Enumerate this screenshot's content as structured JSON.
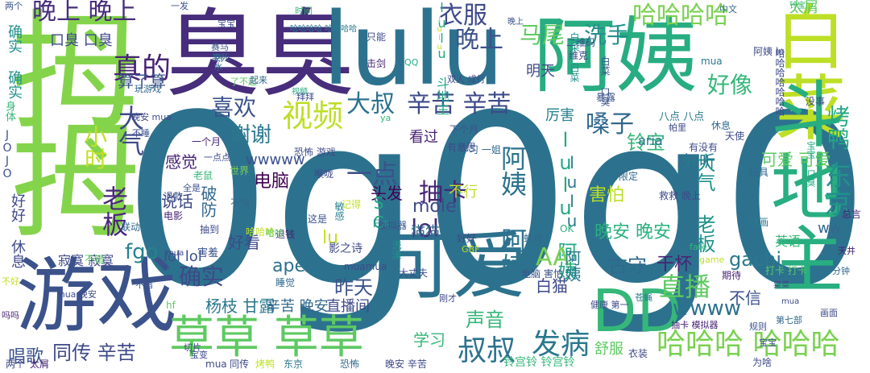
{
  "words": [
    {
      "text": "0g0g0",
      "color": "#2c728e"
    },
    {
      "text": "臭臭",
      "color": "#472d7b"
    },
    {
      "text": "lulu",
      "color": "#2c728e"
    },
    {
      "text": "阿姨",
      "color": "#27ad81"
    },
    {
      "text": "白菜",
      "color": "#bddf26"
    },
    {
      "text": "拇",
      "color": "#84d44b"
    },
    {
      "text": "拇",
      "color": "#84d44b"
    },
    {
      "text": "游戏",
      "color": "#3b528b"
    },
    {
      "text": "可爱",
      "color": "#2c728e"
    },
    {
      "text": "草草 草草",
      "color": "#5ec962"
    },
    {
      "text": "斗地主",
      "color": "#28ae80"
    },
    {
      "text": "DD",
      "color": "#35b779"
    },
    {
      "text": "晚上 晚上",
      "color": "#472d7b"
    },
    {
      "text": "衣服",
      "color": "#3e4a89"
    },
    {
      "text": "晚上",
      "color": "#3b528b"
    },
    {
      "text": "马尾",
      "color": "#5ec962"
    },
    {
      "text": "洗手",
      "color": "#21918c"
    },
    {
      "text": "哈哈哈哈",
      "color": "#7ad151"
    },
    {
      "text": "哈哈哈哈 哈哈哈哈",
      "color": "#2a788e"
    },
    {
      "text": "真的",
      "color": "#482475"
    },
    {
      "text": "喜欢",
      "color": "#3b528b"
    },
    {
      "text": "视频",
      "color": "#bddf26"
    },
    {
      "text": "大叔",
      "color": "#2c728e"
    },
    {
      "text": "辛苦 辛苦",
      "color": "#3e4a89"
    },
    {
      "text": "好像",
      "color": "#35b779"
    },
    {
      "text": "谢谢",
      "color": "#2a788e"
    },
    {
      "text": "嗓子",
      "color": "#31688e"
    },
    {
      "text": "烤鸭",
      "color": "#22a884"
    },
    {
      "text": "东京",
      "color": "#21918c"
    },
    {
      "text": "小时",
      "color": "#c2df23"
    },
    {
      "text": "老板",
      "color": "#482878"
    },
    {
      "text": "大气",
      "color": "#3e4a89"
    },
    {
      "text": "一点",
      "color": "#3b528b"
    },
    {
      "text": "lol",
      "color": "#472c7a"
    },
    {
      "text": "抽卡",
      "color": "#482475"
    },
    {
      "text": "阿姨 阿姨",
      "color": "#2c728e"
    },
    {
      "text": "铃宝",
      "color": "#35b779"
    },
    {
      "text": "lulu 阿姨",
      "color": "#22a884"
    },
    {
      "text": "fgo",
      "color": "#26828e"
    },
    {
      "text": "lol lol",
      "color": "#3b528b"
    },
    {
      "text": "确实",
      "color": "#3e4a89"
    },
    {
      "text": "wwww",
      "color": "#2c728e"
    },
    {
      "text": "直播",
      "color": "#5ec962"
    },
    {
      "text": "gachi",
      "color": "#2a788e"
    },
    {
      "text": "AA",
      "color": "#7ad151"
    },
    {
      "text": "昨天",
      "color": "#3b528b"
    },
    {
      "text": "杨枝 甘露",
      "color": "#2a788e"
    },
    {
      "text": "辛苦 晚安",
      "color": "#31688e"
    },
    {
      "text": "直播间",
      "color": "#3e4a89"
    },
    {
      "text": "声音",
      "color": "#35b779"
    },
    {
      "text": "白猫",
      "color": "#3e4a89"
    },
    {
      "text": "古守",
      "color": "#31688e"
    },
    {
      "text": "干杯",
      "color": "#482475"
    },
    {
      "text": "同传 辛苦",
      "color": "#3e4a89"
    },
    {
      "text": "叔叔",
      "color": "#2c728e"
    },
    {
      "text": "发病",
      "color": "#2a788e"
    },
    {
      "text": "哈哈哈 哈哈哈",
      "color": "#7ad151"
    },
    {
      "text": "晚安 晚安",
      "color": "#2ab07f"
    },
    {
      "text": "大气 老板",
      "color": "#21918c"
    },
    {
      "text": "可爱 可爱",
      "color": "#5ec962"
    },
    {
      "text": "害怕",
      "color": "#bddf26"
    },
    {
      "text": "电脑",
      "color": "#440154"
    },
    {
      "text": "apex",
      "color": "#2c728e"
    },
    {
      "text": "mole",
      "color": "#3e4a89"
    },
    {
      "text": "猫猫",
      "color": "#31688e"
    },
    {
      "text": "lulu 斗地主",
      "color": "#22a884"
    },
    {
      "text": "视频",
      "color": "#27ad81"
    },
    {
      "text": "学习",
      "color": "#35b779"
    },
    {
      "text": "唱歌",
      "color": "#3b528b"
    },
    {
      "text": "好好 休息",
      "color": "#3e4a89"
    },
    {
      "text": "寂寞 寂寞",
      "color": "#3e4a89"
    },
    {
      "text": "算了算",
      "color": "#3b528b"
    },
    {
      "text": "口臭 口臭",
      "color": "#3e4a89"
    },
    {
      "text": "确实 确实",
      "color": "#21918c"
    },
    {
      "text": "感觉",
      "color": "#482475"
    },
    {
      "text": "说话",
      "color": "#3e4a89"
    },
    {
      "text": "破防",
      "color": "#31688e"
    },
    {
      "text": "好看",
      "color": "#3e4a89"
    },
    {
      "text": "wwwww",
      "color": "#3b528b"
    },
    {
      "text": "头发",
      "color": "#440154"
    },
    {
      "text": "不行",
      "color": "#bddf26"
    },
    {
      "text": "看过",
      "color": "#482475"
    },
    {
      "text": "lu",
      "color": "#c2df23"
    },
    {
      "text": "SC",
      "color": "#22a884"
    },
    {
      "text": "lulu 阿姨",
      "color": "#2a788e"
    },
    {
      "text": "明天",
      "color": "#3e4a89"
    },
    {
      "text": "厉害",
      "color": "#26828e"
    },
    {
      "text": "好听",
      "color": "#2a788e"
    },
    {
      "text": "不信",
      "color": "#3b528b"
    },
    {
      "text": "ww",
      "color": "#31688e"
    },
    {
      "text": "英语",
      "color": "#35b779"
    },
    {
      "text": "太屑",
      "color": "#5ec962"
    },
    {
      "text": "aria",
      "color": "#2c728e"
    },
    {
      "text": "mua",
      "color": "#2a788e"
    },
    {
      "text": "JOJO",
      "color": "#3b528b"
    },
    {
      "text": "身体",
      "color": "#35b779"
    },
    {
      "text": "联动",
      "color": "#31688e"
    },
    {
      "text": "电影",
      "color": "#482475"
    },
    {
      "text": "退款",
      "color": "#3b528b"
    },
    {
      "text": "不错",
      "color": "#5ec962"
    },
    {
      "text": "影之诗",
      "color": "#3e4a89"
    },
    {
      "text": "大丈夫",
      "color": "#3e4a89"
    },
    {
      "text": "muamua",
      "color": "#3e4a89"
    },
    {
      "text": "害羞",
      "color": "#3b528b"
    },
    {
      "text": "老鼠",
      "color": "#35b779"
    },
    {
      "text": "抽到",
      "color": "#3e4a89"
    },
    {
      "text": "退钱",
      "color": "#482475"
    },
    {
      "text": "哈哈哈",
      "color": "#bddf26"
    },
    {
      "text": "敏感",
      "color": "#26828e"
    },
    {
      "text": "模拟器",
      "color": "#3b528b"
    },
    {
      "text": "一个月",
      "color": "#482475"
    },
    {
      "text": "下个月",
      "color": "#3b528b"
    },
    {
      "text": "恐怖 游戏",
      "color": "#3e4a89"
    },
    {
      "text": "学习 一姐",
      "color": "#31688e"
    },
    {
      "text": "八点 八点",
      "color": "#2a788e"
    },
    {
      "text": "休息",
      "color": "#31688e"
    },
    {
      "text": "有没有",
      "color": "#3e4a89"
    },
    {
      "text": "天使",
      "color": "#3e4a89"
    },
    {
      "text": "玩具",
      "color": "#31688e"
    },
    {
      "text": "动画",
      "color": "#2a788e"
    },
    {
      "text": "总言",
      "color": "#482475"
    },
    {
      "text": "拜拜",
      "color": "#3e4a89"
    },
    {
      "text": "玩游戏",
      "color": "#31688e"
    },
    {
      "text": "限定",
      "color": "#31688e"
    },
    {
      "text": "世界",
      "color": "#7ad151"
    },
    {
      "text": "有意思",
      "color": "#3e4a89"
    },
    {
      "text": "二维码",
      "color": "#3b528b"
    },
    {
      "text": "维克",
      "color": "#3e4a89"
    },
    {
      "text": "阿姨 lu",
      "color": "#3e4a89"
    },
    {
      "text": "暴露",
      "color": "#3b528b"
    },
    {
      "text": "没事",
      "color": "#3e4a89"
    },
    {
      "text": "中文",
      "color": "#31688e"
    },
    {
      "text": "只能",
      "color": "#3e4a89"
    },
    {
      "text": "击剑",
      "color": "#482475"
    },
    {
      "text": "双人 成行",
      "color": "#3e4a89"
    },
    {
      "text": "QQ",
      "color": "#27ad81"
    },
    {
      "text": "一发",
      "color": "#3b528b"
    },
    {
      "text": "两个",
      "color": "#3b528b"
    },
    {
      "text": "时间",
      "color": "#35b779"
    },
    {
      "text": "赛马",
      "color": "#3b528b"
    },
    {
      "text": "笑死",
      "color": "#31688e"
    },
    {
      "text": "热水",
      "color": "#31688e"
    },
    {
      "text": "了不起",
      "color": "#5ec962"
    },
    {
      "text": "一点点",
      "color": "#3e4a89"
    },
    {
      "text": "期待",
      "color": "#482475"
    },
    {
      "text": "打卡 打卡",
      "color": "#5ec962"
    },
    {
      "text": "画面",
      "color": "#3e4a89"
    },
    {
      "text": "规则",
      "color": "#3b528b"
    },
    {
      "text": "第七部",
      "color": "#31688e"
    },
    {
      "text": "分钟",
      "color": "#31688e"
    },
    {
      "text": "天井",
      "color": "#482475"
    },
    {
      "text": "fate",
      "color": "#35b779"
    },
    {
      "text": "game",
      "color": "#bddf26"
    },
    {
      "text": "苍蝇",
      "color": "#2a788e"
    },
    {
      "text": "健康 第一",
      "color": "#3e4a89"
    },
    {
      "text": "抽卡 模拟器",
      "color": "#482475"
    },
    {
      "text": "舒服",
      "color": "#5ec962"
    },
    {
      "text": "衣装",
      "color": "#3e4a89"
    },
    {
      "text": "铃宫铃 铃宫铃",
      "color": "#35b779"
    },
    {
      "text": "为啥",
      "color": "#3e4a89"
    },
    {
      "text": "晚安 辛苦",
      "color": "#3e4a89"
    },
    {
      "text": "恐怖",
      "color": "#31688e"
    },
    {
      "text": "东京",
      "color": "#2a788e"
    },
    {
      "text": "烤鸭",
      "color": "#bddf26"
    },
    {
      "text": "同传",
      "color": "#3e4a89"
    },
    {
      "text": "mua",
      "color": "#3e4a89"
    },
    {
      "text": "切片",
      "color": "#3e4a89"
    },
    {
      "text": "太屑",
      "color": "#482475"
    },
    {
      "text": "两个",
      "color": "#3e4a89"
    },
    {
      "text": "吗吗",
      "color": "#482475"
    },
    {
      "text": "不好",
      "color": "#c2df23"
    },
    {
      "text": "hf",
      "color": "#5ec962"
    },
    {
      "text": "睡觉",
      "color": "#31688e"
    },
    {
      "text": "白菜 白菜",
      "color": "#21918c"
    },
    {
      "text": "白菜 口臭",
      "color": "#3b528b"
    },
    {
      "text": "晚上",
      "color": "#3b528b"
    },
    {
      "text": "铃宝",
      "color": "#35b779"
    },
    {
      "text": "哈哈哈哈哈哈哈",
      "color": "#3e4a89"
    },
    {
      "text": "电脑 害怕",
      "color": "#3b528b"
    },
    {
      "text": "GBF",
      "color": "#bddf26"
    },
    {
      "text": "OK",
      "color": "#27ad81"
    },
    {
      "text": "蚌埠",
      "color": "#31688e"
    },
    {
      "text": "好好",
      "color": "#3e4a89"
    },
    {
      "text": "这是",
      "color": "#3b528b"
    },
    {
      "text": "记得",
      "color": "#c2df23"
    },
    {
      "text": "不愧",
      "color": "#31688e"
    },
    {
      "text": "日本",
      "color": "#21918c"
    },
    {
      "text": "洗澡",
      "color": "#21918c"
    },
    {
      "text": "哈哈",
      "color": "#5ec962"
    },
    {
      "text": "全是",
      "color": "#3b528b"
    },
    {
      "text": "喉咙",
      "color": "#3e4a89"
    },
    {
      "text": "mua 晚安",
      "color": "#3e4a89"
    },
    {
      "text": "晚安 mua",
      "color": "#3e4a89"
    },
    {
      "text": "ya",
      "color": "#35b779"
    },
    {
      "text": "宝宝",
      "color": "#3b528b"
    },
    {
      "text": "帕里",
      "color": "#3e4a89"
    },
    {
      "text": "救救 晚上",
      "color": "#3e4a89"
    },
    {
      "text": "宝宝 口臭",
      "color": "#22a884"
    },
    {
      "text": "lulu",
      "color": "#bddf26"
    },
    {
      "text": "mua",
      "color": "#3e4a89"
    },
    {
      "text": "刚才",
      "color": "#3e4a89"
    },
    {
      "text": "不错",
      "color": "#3b528b"
    },
    {
      "text": "宝变",
      "color": "#3e4a89"
    },
    {
      "text": "mua",
      "color": "#3e4a89"
    },
    {
      "text": "菜菜",
      "color": "#3e4a89"
    },
    {
      "text": "不睡",
      "color": "#3b528b"
    },
    {
      "text": "起来",
      "color": "#31688e"
    },
    {
      "text": "宝宝",
      "color": "#3e4a89"
    }
  ]
}
